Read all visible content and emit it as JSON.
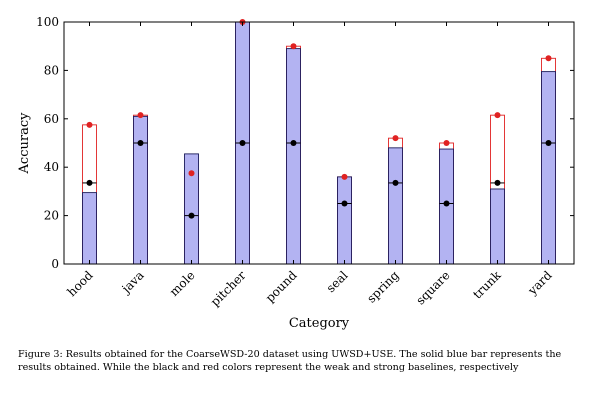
{
  "chart_data": {
    "type": "bar",
    "xlabel": "Category",
    "ylabel": "Accuracy",
    "ylim": [
      0,
      100
    ],
    "yticks": [
      "0",
      "20",
      "40",
      "60",
      "80",
      "100"
    ],
    "grid": false,
    "legend": "none",
    "categories": [
      "hood",
      "java",
      "mole",
      "pitcher",
      "pound",
      "seal",
      "spring",
      "square",
      "trunk",
      "yard"
    ],
    "series": [
      {
        "role": "bar",
        "values": [
          29.5,
          61,
          45.5,
          100,
          89,
          36,
          48,
          47.5,
          31,
          79.5
        ],
        "fill": "#b3b3f2",
        "stroke": "#1a1a5a"
      },
      {
        "role": "strong-baseline",
        "values": [
          57.5,
          61.5,
          37.5,
          100,
          90,
          36,
          52,
          50,
          61.5,
          85
        ],
        "color": "#e02222"
      },
      {
        "role": "weak-baseline",
        "values": [
          33.5,
          50,
          20,
          50,
          50,
          25,
          33.5,
          25,
          33.5,
          50
        ],
        "color": "#000000"
      }
    ]
  },
  "caption": {
    "text": "Figure 3: Results obtained for the CoarseWSD-20 dataset using UWSD+USE. The solid blue bar represents the results obtained. While the black and red colors represent the weak and strong baselines, respectively"
  }
}
